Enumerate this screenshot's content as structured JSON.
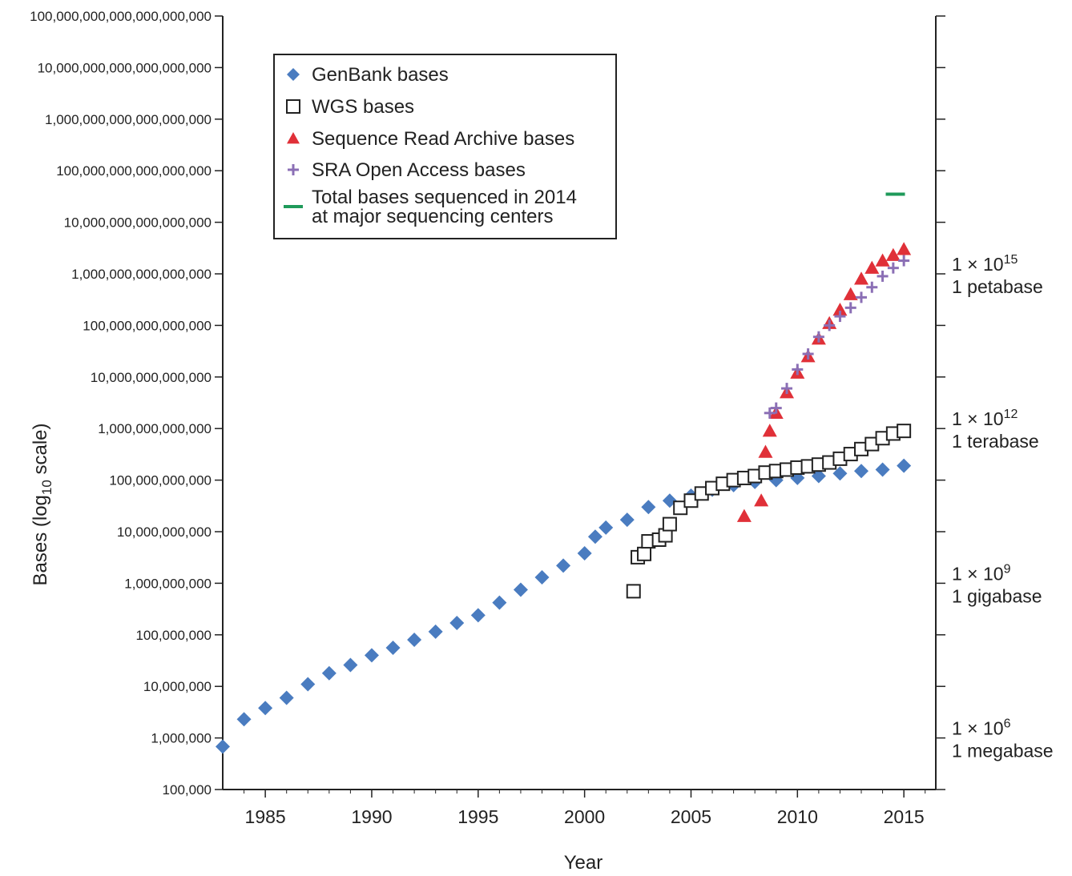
{
  "chart_data": {
    "type": "scatter",
    "title": "",
    "xlabel": "Year",
    "ylabel": "Bases (log",
    "ylabel_sub": "10",
    "ylabel_suffix": " scale)",
    "x_scale": "linear",
    "y_scale": "log",
    "xlim": [
      1983,
      2016.5
    ],
    "ylim": [
      100000,
      100000000000000000000
    ],
    "grid": false,
    "legend_position": "top-left",
    "x_ticks": [
      1985,
      1990,
      1995,
      2000,
      2005,
      2010,
      2015
    ],
    "x_tick_labels": [
      "1985",
      "1990",
      "1995",
      "2000",
      "2005",
      "2010",
      "2015"
    ],
    "y_ticks": [
      100000,
      1000000,
      10000000,
      100000000,
      1000000000,
      10000000000,
      100000000000,
      1000000000000,
      10000000000000,
      100000000000000,
      1000000000000000,
      10000000000000000,
      100000000000000000,
      1000000000000000000,
      10000000000000000000,
      100000000000000000000
    ],
    "y_tick_labels": [
      "100,000",
      "1,000,000",
      "10,000,000",
      "100,000,000",
      "1,000,000,000",
      "10,000,000,000",
      "100,000,000,000",
      "1,000,000,000,000",
      "10,000,000,000,000",
      "100,000,000,000,000",
      "1,000,000,000,000,000",
      "10,000,000,000,000,000",
      "100,000,000,000,000,000",
      "1,000,000,000,000,000,000",
      "10,000,000,000,000,000,000",
      "100,000,000,000,000,000,000"
    ],
    "right_axis_labels": [
      {
        "value": 1000000,
        "base": "1 × 10",
        "exp": "6",
        "name": "1 megabase"
      },
      {
        "value": 1000000000,
        "base": "1 × 10",
        "exp": "9",
        "name": "1 gigabase"
      },
      {
        "value": 1000000000000,
        "base": "1 × 10",
        "exp": "12",
        "name": "1 terabase"
      },
      {
        "value": 1000000000000000,
        "base": "1 × 10",
        "exp": "15",
        "name": "1 petabase"
      }
    ],
    "series": [
      {
        "name": "GenBank bases",
        "marker": "diamond",
        "color": "#4a7cc0",
        "x": [
          1983.0,
          1984.0,
          1985.0,
          1986.0,
          1987.0,
          1988.0,
          1989.0,
          1990.0,
          1991.0,
          1992.0,
          1993.0,
          1994.0,
          1995.0,
          1996.0,
          1997.0,
          1998.0,
          1999.0,
          2000.0,
          2000.5,
          2001.0,
          2002.0,
          2003.0,
          2004.0,
          2005.0,
          2006.0,
          2007.0,
          2008.0,
          2009.0,
          2010.0,
          2011.0,
          2012.0,
          2013.0,
          2014.0,
          2015.0
        ],
        "y": [
          680000,
          2300000,
          3800000,
          6000000,
          11000000,
          18000000,
          26000000,
          40000000,
          56000000,
          80000000,
          115000000,
          170000000,
          240000000,
          420000000,
          750000000,
          1300000000,
          2200000000,
          3800000000,
          8000000000,
          12000000000,
          17000000000,
          30000000000,
          40000000000,
          50000000000,
          65000000000,
          80000000000,
          92000000000,
          100000000000,
          110000000000,
          120000000000,
          135000000000,
          150000000000,
          160000000000,
          190000000000
        ]
      },
      {
        "name": "WGS bases",
        "marker": "square",
        "color": "#222222",
        "x": [
          2002.3,
          2002.5,
          2002.8,
          2003.0,
          2003.5,
          2003.8,
          2004.0,
          2004.5,
          2005.0,
          2005.5,
          2006.0,
          2006.5,
          2007.0,
          2007.5,
          2008.0,
          2008.5,
          2009.0,
          2009.5,
          2010.0,
          2010.5,
          2011.0,
          2011.5,
          2012.0,
          2012.5,
          2013.0,
          2013.5,
          2014.0,
          2014.5,
          2015.0
        ],
        "y": [
          700000000,
          3200000000,
          3700000000,
          6500000000,
          7000000000,
          8500000000,
          14000000000,
          29000000000,
          40000000000,
          55000000000,
          70000000000,
          85000000000,
          100000000000,
          110000000000,
          120000000000,
          140000000000,
          150000000000,
          160000000000,
          175000000000,
          185000000000,
          200000000000,
          220000000000,
          260000000000,
          320000000000,
          400000000000,
          500000000000,
          650000000000,
          800000000000,
          900000000000
        ]
      },
      {
        "name": "Sequence Read Archive bases",
        "marker": "triangle",
        "color": "#e03038",
        "x": [
          2007.5,
          2008.3,
          2008.5,
          2008.7,
          2009.0,
          2009.5,
          2010.0,
          2010.5,
          2011.0,
          2011.5,
          2012.0,
          2012.5,
          2013.0,
          2013.5,
          2014.0,
          2014.5,
          2015.0
        ],
        "y": [
          20000000000,
          40000000000,
          350000000000,
          900000000000,
          2000000000000,
          5000000000000,
          12000000000000,
          25000000000000,
          55000000000000,
          110000000000000,
          200000000000000,
          400000000000000,
          800000000000000,
          1300000000000000,
          1800000000000000,
          2300000000000000,
          3000000000000000
        ]
      },
      {
        "name": "SRA Open Access bases",
        "marker": "plus",
        "color": "#8b6fb5",
        "x": [
          2008.7,
          2009.0,
          2009.5,
          2010.0,
          2010.5,
          2011.0,
          2011.5,
          2012.0,
          2012.5,
          2013.0,
          2013.5,
          2014.0,
          2014.5,
          2015.0
        ],
        "y": [
          2000000000000,
          2500000000000,
          6000000000000,
          14000000000000,
          28000000000000,
          60000000000000,
          100000000000000,
          150000000000000,
          220000000000000,
          350000000000000,
          550000000000000,
          900000000000000,
          1300000000000000,
          1800000000000000
        ]
      },
      {
        "name": "Total bases sequenced in 2014\nat major sequencing centers",
        "marker": "hline",
        "color": "#1f9a5a",
        "x": [
          2014.6
        ],
        "y": [
          35000000000000000
        ]
      }
    ]
  }
}
